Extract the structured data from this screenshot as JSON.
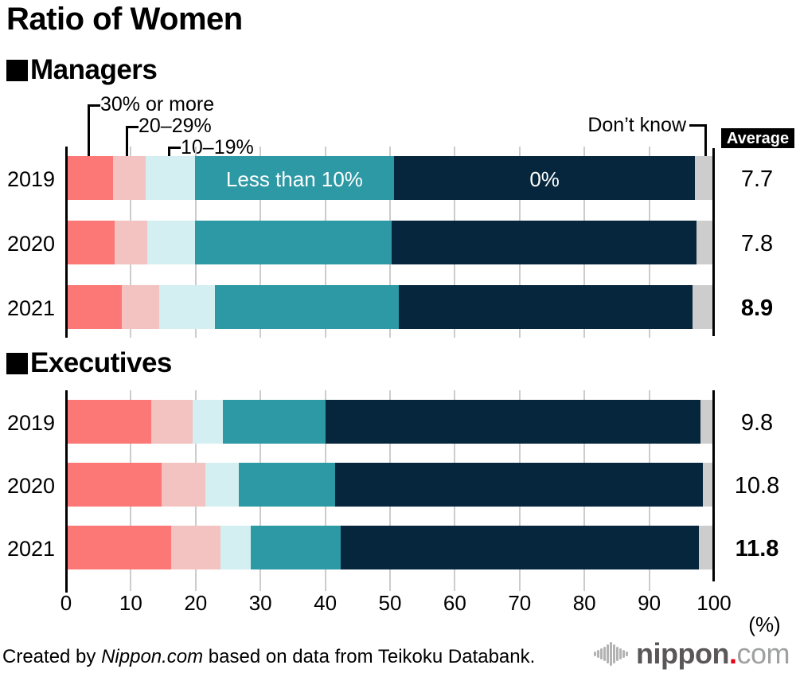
{
  "title": "Ratio of Women",
  "annotations": {
    "label_30_or_more": "30% or more",
    "label_20_29": "20–29%",
    "label_10_19": "10–19%",
    "label_dont_know": "Don’t know",
    "bar_label_less_than_10": "Less than 10%",
    "bar_label_zero": "0%",
    "average_header": "Average"
  },
  "axis": {
    "ticks": [
      "0",
      "10",
      "20",
      "30",
      "40",
      "50",
      "60",
      "70",
      "80",
      "90",
      "100"
    ],
    "unit": "(%)"
  },
  "colors": {
    "red_30_or_more": "#fc7876",
    "pink_20_29": "#f2c3c1",
    "cyan_10_19": "#d3eff1",
    "teal_less_than_10": "#2d99a4",
    "navy_zero": "#05263d",
    "gray_dont_know": "#cdcdcd",
    "gridline": "#cccccc",
    "axis_line": "#000000",
    "average_header_bg": "#000000",
    "logo_gray": "#595757",
    "logo_light_gray": "#9fa0a0",
    "logo_red": "#e60012"
  },
  "chart_data": [
    {
      "type": "bar",
      "stacked": true,
      "orientation": "horizontal",
      "title": "Managers",
      "categories": [
        "2019",
        "2020",
        "2021"
      ],
      "segment_labels": [
        "30% or more",
        "20–29%",
        "10–19%",
        "Less than 10%",
        "0%",
        "Don’t know"
      ],
      "segment_colors": [
        "#fc7876",
        "#f2c3c1",
        "#d3eff1",
        "#2d99a4",
        "#05263d",
        "#cdcdcd"
      ],
      "xlim": [
        0,
        100
      ],
      "series": [
        {
          "name": "2019",
          "values": [
            7.2,
            5.1,
            7.6,
            30.7,
            46.5,
            2.9
          ],
          "average": "7.7"
        },
        {
          "name": "2020",
          "values": [
            7.5,
            5.0,
            7.4,
            30.3,
            47.1,
            2.7
          ],
          "average": "7.8"
        },
        {
          "name": "2021",
          "values": [
            8.6,
            5.8,
            8.6,
            28.4,
            45.3,
            3.3
          ],
          "average": "8.9"
        }
      ]
    },
    {
      "type": "bar",
      "stacked": true,
      "orientation": "horizontal",
      "title": "Executives",
      "categories": [
        "2019",
        "2020",
        "2021"
      ],
      "segment_labels": [
        "30% or more",
        "20–29%",
        "10–19%",
        "Less than 10%",
        "0%",
        "Don’t know"
      ],
      "segment_colors": [
        "#fc7876",
        "#f2c3c1",
        "#d3eff1",
        "#2d99a4",
        "#05263d",
        "#cdcdcd"
      ],
      "xlim": [
        0,
        100
      ],
      "series": [
        {
          "name": "2019",
          "values": [
            13.1,
            6.4,
            4.7,
            15.8,
            57.9,
            2.1
          ],
          "average": "9.8"
        },
        {
          "name": "2020",
          "values": [
            14.7,
            6.8,
            5.1,
            14.9,
            56.8,
            1.7
          ],
          "average": "10.8"
        },
        {
          "name": "2021",
          "values": [
            16.2,
            7.6,
            4.7,
            13.9,
            55.3,
            2.3
          ],
          "average": "11.8"
        }
      ]
    }
  ],
  "footer": {
    "credit_prefix": "Created by ",
    "credit_brand": "Nippon.com",
    "credit_suffix": " based on data from Teikoku Databank.",
    "logo_main": "nippon",
    "logo_dot": ".",
    "logo_tld": "com"
  }
}
